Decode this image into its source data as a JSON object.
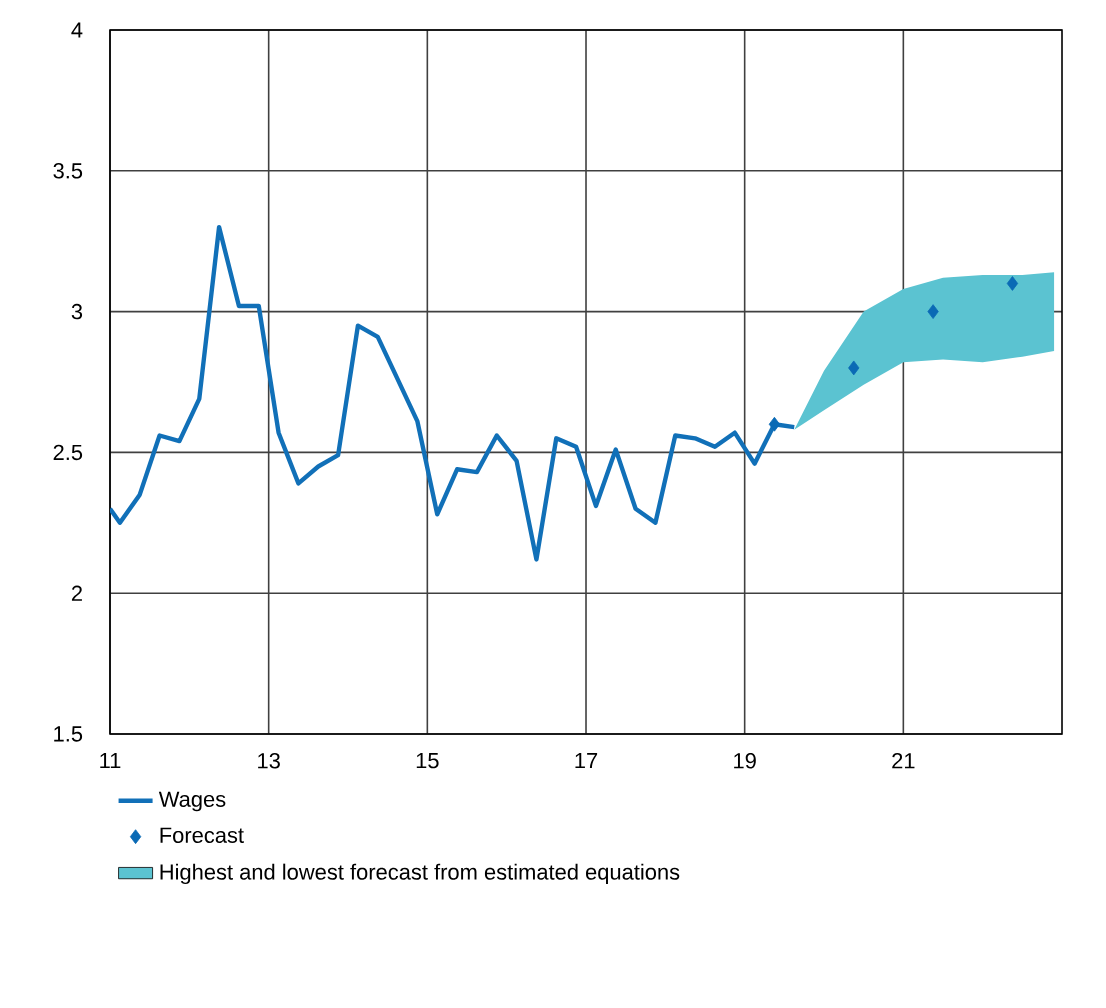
{
  "chart_data": {
    "type": "line",
    "xlim": [
      11,
      23
    ],
    "ylim": [
      1.5,
      4
    ],
    "xticks": [
      11,
      13,
      15,
      17,
      19,
      21
    ],
    "yticks": [
      1.5,
      2,
      2.5,
      3,
      3.5,
      4
    ],
    "grid": true,
    "legend": "bottom left",
    "series": [
      {
        "name": "Wages",
        "color": "#1170b8",
        "marker": "none",
        "x": [
          11.0,
          11.125,
          11.375,
          11.625,
          11.875,
          12.125,
          12.375,
          12.625,
          12.875,
          13.125,
          13.375,
          13.625,
          13.875,
          14.125,
          14.375,
          14.625,
          14.875,
          15.125,
          15.375,
          15.625,
          15.875,
          16.125,
          16.375,
          16.625,
          16.875,
          17.125,
          17.375,
          17.625,
          17.875,
          18.125,
          18.375,
          18.625,
          18.875,
          19.125,
          19.375,
          19.625
        ],
        "values": [
          2.3,
          2.25,
          2.35,
          2.56,
          2.54,
          2.69,
          3.3,
          3.02,
          3.02,
          2.57,
          2.39,
          2.45,
          2.49,
          2.95,
          2.91,
          2.76,
          2.61,
          2.28,
          2.44,
          2.43,
          2.56,
          2.47,
          2.12,
          2.55,
          2.52,
          2.31,
          2.51,
          2.3,
          2.25,
          2.56,
          2.55,
          2.52,
          2.57,
          2.46,
          2.6,
          2.59
        ]
      },
      {
        "name": "Forecast",
        "type": "scatter",
        "color": "#0a6ab5",
        "marker": "diamond",
        "x": [
          19.375,
          20.375,
          21.375,
          22.375
        ],
        "values": [
          2.6,
          2.8,
          3.0,
          3.1
        ]
      },
      {
        "name": "Highest and lowest forecast from estimated equations",
        "type": "area",
        "color": "#5bc3d1",
        "x": [
          19.625,
          20.0,
          20.5,
          21.0,
          21.5,
          22.0,
          22.5,
          22.9
        ],
        "values": [
          null,
          null,
          null,
          null,
          null,
          null,
          null,
          null
        ],
        "lower": [
          2.58,
          2.65,
          2.74,
          2.82,
          2.83,
          2.82,
          2.84,
          2.86
        ],
        "upper": [
          2.58,
          2.79,
          3.0,
          3.08,
          3.12,
          3.13,
          3.13,
          3.14
        ]
      }
    ]
  }
}
